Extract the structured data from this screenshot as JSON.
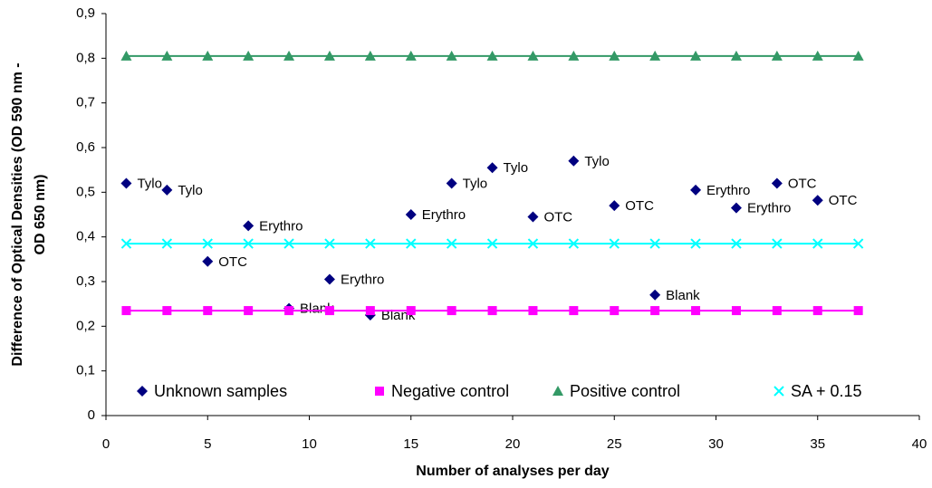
{
  "chart_data": {
    "type": "scatter",
    "xlabel": "Number of analyses per day",
    "ylabel": [
      "Difference of Optical Densities (OD 590 nm -",
      "OD 650 nm)"
    ],
    "xlim": [
      0,
      40
    ],
    "xticks": [
      0,
      5,
      10,
      15,
      20,
      25,
      30,
      35,
      40
    ],
    "ylim": [
      0,
      0.9
    ],
    "yticks": [
      0,
      {
        "value": 0.1,
        "label": "0,1"
      },
      {
        "value": 0.2,
        "label": "0,2"
      },
      {
        "value": 0.3,
        "label": "0,3"
      },
      {
        "value": 0.4,
        "label": "0,4"
      },
      {
        "value": 0.5,
        "label": "0,5"
      },
      {
        "value": 0.6,
        "label": "0,6"
      },
      {
        "value": 0.7,
        "label": "0,7"
      },
      {
        "value": 0.8,
        "label": "0,8"
      },
      {
        "value": 0.9,
        "label": "0,9"
      }
    ],
    "grid": false,
    "legend": "bottom",
    "series": [
      {
        "name": "Unknown samples",
        "color": "#000080",
        "marker": "diamond",
        "line": false,
        "x": [
          1,
          3,
          5,
          7,
          9,
          11,
          13,
          15,
          17,
          19,
          21,
          23,
          25,
          27,
          29,
          31,
          33,
          35
        ],
        "values": [
          0.52,
          0.505,
          0.345,
          0.425,
          0.24,
          0.305,
          0.225,
          0.45,
          0.52,
          0.555,
          0.445,
          0.57,
          0.47,
          0.27,
          0.505,
          0.465,
          0.52,
          0.482
        ],
        "labels": [
          "Tylo",
          "Tylo",
          "OTC",
          "Erythro",
          "Blank",
          "Erythro",
          "Blank",
          "Erythro",
          "Tylo",
          "Tylo",
          "OTC",
          "Tylo",
          "OTC",
          "Blank",
          "Erythro",
          "Erythro",
          "OTC",
          "OTC"
        ]
      },
      {
        "name": "Negative control",
        "color": "#ff00ff",
        "marker": "square",
        "line": true,
        "x": [
          1,
          3,
          5,
          7,
          9,
          11,
          13,
          15,
          17,
          19,
          21,
          23,
          25,
          27,
          29,
          31,
          33,
          35,
          37
        ],
        "values": [
          0.235,
          0.235,
          0.235,
          0.235,
          0.235,
          0.235,
          0.235,
          0.235,
          0.235,
          0.235,
          0.235,
          0.235,
          0.235,
          0.235,
          0.235,
          0.235,
          0.235,
          0.235,
          0.235
        ]
      },
      {
        "name": "Positive control",
        "color": "#339966",
        "marker": "triangle",
        "line": true,
        "x": [
          1,
          3,
          5,
          7,
          9,
          11,
          13,
          15,
          17,
          19,
          21,
          23,
          25,
          27,
          29,
          31,
          33,
          35,
          37
        ],
        "values": [
          0.805,
          0.805,
          0.805,
          0.805,
          0.805,
          0.805,
          0.805,
          0.805,
          0.805,
          0.805,
          0.805,
          0.805,
          0.805,
          0.805,
          0.805,
          0.805,
          0.805,
          0.805,
          0.805
        ]
      },
      {
        "name": "SA + 0.15",
        "color": "#00ffff",
        "marker": "cross",
        "line": true,
        "x": [
          1,
          3,
          5,
          7,
          9,
          11,
          13,
          15,
          17,
          19,
          21,
          23,
          25,
          27,
          29,
          31,
          33,
          35,
          37
        ],
        "values": [
          0.385,
          0.385,
          0.385,
          0.385,
          0.385,
          0.385,
          0.385,
          0.385,
          0.385,
          0.385,
          0.385,
          0.385,
          0.385,
          0.385,
          0.385,
          0.385,
          0.385,
          0.385,
          0.385
        ]
      }
    ]
  }
}
